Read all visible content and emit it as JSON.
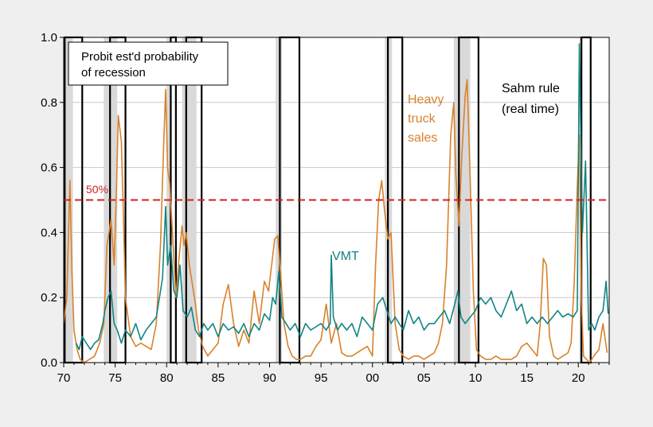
{
  "chart_data": {
    "type": "line",
    "title": "",
    "xlabel": "",
    "ylabel": "",
    "xlim": [
      1970,
      2023
    ],
    "ylim": [
      0,
      1
    ],
    "grid": "horizontal",
    "x_ticks": [
      1970,
      1975,
      1980,
      1985,
      1990,
      1995,
      2000,
      2005,
      2010,
      2015,
      2020
    ],
    "x_tick_labels": [
      "70",
      "75",
      "80",
      "85",
      "90",
      "95",
      "00",
      "05",
      "10",
      "15",
      "20"
    ],
    "y_ticks": [
      0,
      0.2,
      0.4,
      0.6,
      0.8,
      1.0
    ],
    "y_tick_labels": [
      "0.0",
      "0.2",
      "0.4",
      "0.6",
      "0.8",
      "1.0"
    ],
    "recession_shading": [
      [
        1970.0,
        1970.9
      ],
      [
        1973.9,
        1975.2
      ],
      [
        1980.0,
        1980.5
      ],
      [
        1981.5,
        1982.9
      ],
      [
        1990.6,
        1991.2
      ],
      [
        2001.2,
        2001.9
      ],
      [
        2007.9,
        2009.5
      ],
      [
        2020.1,
        2020.4
      ]
    ],
    "sahm_rule_periods": [
      [
        1970.1,
        1971.8
      ],
      [
        1974.5,
        1976.0
      ],
      [
        1980.4,
        1980.9
      ],
      [
        1981.9,
        1983.4
      ],
      [
        1991.0,
        1992.9
      ],
      [
        2001.5,
        2002.9
      ],
      [
        2008.4,
        2010.3
      ],
      [
        2020.3,
        2021.2
      ]
    ],
    "threshold": {
      "value": 0.5,
      "label": "50%"
    },
    "annotations": {
      "legend_box": "Probit est'd probability of recession",
      "legend_line1": "Probit est'd probability",
      "legend_line2": "of recession",
      "heavy_truck_line1": "Heavy",
      "heavy_truck_line2": "truck",
      "heavy_truck_line3": "sales",
      "sahm_line1": "Sahm rule",
      "sahm_line2": "(real time)",
      "vmt": "VMT"
    },
    "series": [
      {
        "name": "Heavy truck sales",
        "color": "#d9822b",
        "x": [
          1970.0,
          1970.3,
          1970.6,
          1970.8,
          1971.0,
          1971.3,
          1971.6,
          1972.0,
          1972.5,
          1973.0,
          1973.5,
          1973.9,
          1974.2,
          1974.6,
          1974.9,
          1975.1,
          1975.3,
          1975.6,
          1975.8,
          1976.0,
          1976.5,
          1977.0,
          1977.5,
          1978.0,
          1978.5,
          1979.0,
          1979.4,
          1979.7,
          1979.9,
          1980.1,
          1980.3,
          1980.6,
          1980.9,
          1981.2,
          1981.5,
          1981.7,
          1981.9,
          1982.2,
          1982.5,
          1982.8,
          1983.1,
          1983.5,
          1984.0,
          1984.5,
          1985.0,
          1985.5,
          1986.0,
          1986.5,
          1987.0,
          1987.5,
          1988.0,
          1988.5,
          1989.0,
          1989.5,
          1989.9,
          1990.2,
          1990.5,
          1990.8,
          1991.1,
          1991.4,
          1991.8,
          1992.2,
          1992.6,
          1993.0,
          1993.5,
          1994.0,
          1994.5,
          1995.0,
          1995.5,
          1996.0,
          1996.5,
          1997.0,
          1997.5,
          1998.0,
          1998.5,
          1999.0,
          1999.5,
          2000.0,
          2000.3,
          2000.6,
          2000.9,
          2001.2,
          2001.5,
          2001.8,
          2002.2,
          2002.6,
          2003.0,
          2003.5,
          2004.0,
          2004.5,
          2005.0,
          2005.5,
          2006.0,
          2006.4,
          2006.8,
          2007.2,
          2007.6,
          2007.9,
          2008.1,
          2008.4,
          2008.7,
          2009.0,
          2009.2,
          2009.5,
          2009.8,
          2010.1,
          2010.5,
          2011.0,
          2011.5,
          2012.0,
          2012.5,
          2013.0,
          2013.5,
          2014.0,
          2014.5,
          2015.0,
          2015.5,
          2016.0,
          2016.3,
          2016.6,
          2016.9,
          2017.2,
          2017.6,
          2018.0,
          2018.5,
          2019.0,
          2019.3,
          2019.6,
          2019.9,
          2020.1,
          2020.3,
          2020.5,
          2020.8,
          2021.1,
          2021.5,
          2022.0,
          2022.4,
          2022.8
        ],
        "y": [
          0.12,
          0.2,
          0.56,
          0.28,
          0.1,
          0.04,
          0.01,
          0.0,
          0.01,
          0.02,
          0.06,
          0.12,
          0.36,
          0.44,
          0.3,
          0.5,
          0.76,
          0.68,
          0.45,
          0.2,
          0.08,
          0.05,
          0.06,
          0.05,
          0.04,
          0.12,
          0.36,
          0.66,
          0.84,
          0.6,
          0.55,
          0.38,
          0.2,
          0.32,
          0.42,
          0.36,
          0.4,
          0.3,
          0.24,
          0.18,
          0.1,
          0.05,
          0.02,
          0.04,
          0.06,
          0.18,
          0.24,
          0.12,
          0.05,
          0.1,
          0.06,
          0.22,
          0.12,
          0.25,
          0.22,
          0.3,
          0.38,
          0.39,
          0.26,
          0.12,
          0.05,
          0.02,
          0.01,
          0.01,
          0.02,
          0.02,
          0.05,
          0.07,
          0.18,
          0.06,
          0.12,
          0.03,
          0.02,
          0.02,
          0.03,
          0.04,
          0.05,
          0.02,
          0.3,
          0.5,
          0.56,
          0.46,
          0.38,
          0.4,
          0.12,
          0.04,
          0.02,
          0.01,
          0.02,
          0.02,
          0.01,
          0.02,
          0.03,
          0.06,
          0.12,
          0.3,
          0.7,
          0.8,
          0.58,
          0.42,
          0.65,
          0.82,
          0.87,
          0.56,
          0.22,
          0.04,
          0.02,
          0.01,
          0.01,
          0.02,
          0.01,
          0.01,
          0.01,
          0.02,
          0.05,
          0.06,
          0.04,
          0.02,
          0.12,
          0.32,
          0.3,
          0.08,
          0.02,
          0.01,
          0.02,
          0.03,
          0.06,
          0.25,
          0.54,
          0.7,
          0.2,
          0.02,
          0.01,
          0.0,
          0.02,
          0.04,
          0.12,
          0.03
        ]
      },
      {
        "name": "VMT",
        "color": "#138484",
        "x": [
          1971.2,
          1971.5,
          1971.8,
          1972.2,
          1972.6,
          1973.0,
          1973.4,
          1973.8,
          1974.0,
          1974.3,
          1974.6,
          1974.9,
          1975.2,
          1975.6,
          1976.0,
          1976.5,
          1977.0,
          1977.5,
          1978.0,
          1978.5,
          1979.0,
          1979.3,
          1979.6,
          1979.9,
          1980.1,
          1980.4,
          1980.7,
          1981.0,
          1981.3,
          1981.6,
          1982.0,
          1982.4,
          1982.8,
          1983.2,
          1983.6,
          1984.0,
          1984.5,
          1985.0,
          1985.5,
          1986.0,
          1986.5,
          1987.0,
          1987.5,
          1988.0,
          1988.5,
          1989.0,
          1989.5,
          1990.0,
          1990.3,
          1990.6,
          1990.9,
          1991.2,
          1991.6,
          1992.0,
          1992.5,
          1993.0,
          1993.5,
          1994.0,
          1994.5,
          1995.0,
          1995.5,
          1995.9,
          1996.0,
          1996.2,
          1996.6,
          1997.0,
          1997.5,
          1998.0,
          1998.5,
          1999.0,
          1999.5,
          2000.0,
          2000.5,
          2001.0,
          2001.4,
          2001.8,
          2002.2,
          2002.6,
          2003.0,
          2003.5,
          2004.0,
          2004.5,
          2005.0,
          2005.5,
          2006.0,
          2006.5,
          2007.0,
          2007.5,
          2008.0,
          2008.3,
          2008.6,
          2009.0,
          2009.5,
          2010.0,
          2010.5,
          2011.0,
          2011.5,
          2012.0,
          2012.5,
          2013.0,
          2013.5,
          2014.0,
          2014.5,
          2015.0,
          2015.5,
          2016.0,
          2016.5,
          2017.0,
          2017.5,
          2018.0,
          2018.5,
          2019.0,
          2019.5,
          2019.9,
          2020.1,
          2020.2,
          2020.4,
          2020.7,
          2021.0,
          2021.3,
          2021.6,
          2022.0,
          2022.4,
          2022.7,
          2022.9
        ],
        "y": [
          0.06,
          0.04,
          0.08,
          0.06,
          0.04,
          0.06,
          0.07,
          0.12,
          0.16,
          0.2,
          0.22,
          0.12,
          0.1,
          0.06,
          0.1,
          0.08,
          0.12,
          0.07,
          0.1,
          0.12,
          0.14,
          0.2,
          0.26,
          0.48,
          0.3,
          0.36,
          0.22,
          0.2,
          0.3,
          0.16,
          0.14,
          0.17,
          0.1,
          0.08,
          0.12,
          0.1,
          0.12,
          0.08,
          0.12,
          0.1,
          0.11,
          0.09,
          0.12,
          0.08,
          0.12,
          0.1,
          0.15,
          0.13,
          0.2,
          0.18,
          0.28,
          0.14,
          0.12,
          0.1,
          0.12,
          0.08,
          0.12,
          0.1,
          0.11,
          0.12,
          0.1,
          0.12,
          0.33,
          0.14,
          0.1,
          0.12,
          0.1,
          0.12,
          0.08,
          0.14,
          0.12,
          0.1,
          0.18,
          0.2,
          0.16,
          0.12,
          0.14,
          0.12,
          0.1,
          0.16,
          0.12,
          0.14,
          0.1,
          0.12,
          0.12,
          0.14,
          0.16,
          0.12,
          0.18,
          0.22,
          0.14,
          0.12,
          0.14,
          0.16,
          0.2,
          0.18,
          0.2,
          0.16,
          0.14,
          0.18,
          0.22,
          0.16,
          0.18,
          0.12,
          0.14,
          0.12,
          0.14,
          0.12,
          0.14,
          0.16,
          0.14,
          0.15,
          0.14,
          0.16,
          0.98,
          0.78,
          0.4,
          0.62,
          0.1,
          0.12,
          0.1,
          0.14,
          0.16,
          0.25,
          0.15
        ]
      }
    ]
  }
}
